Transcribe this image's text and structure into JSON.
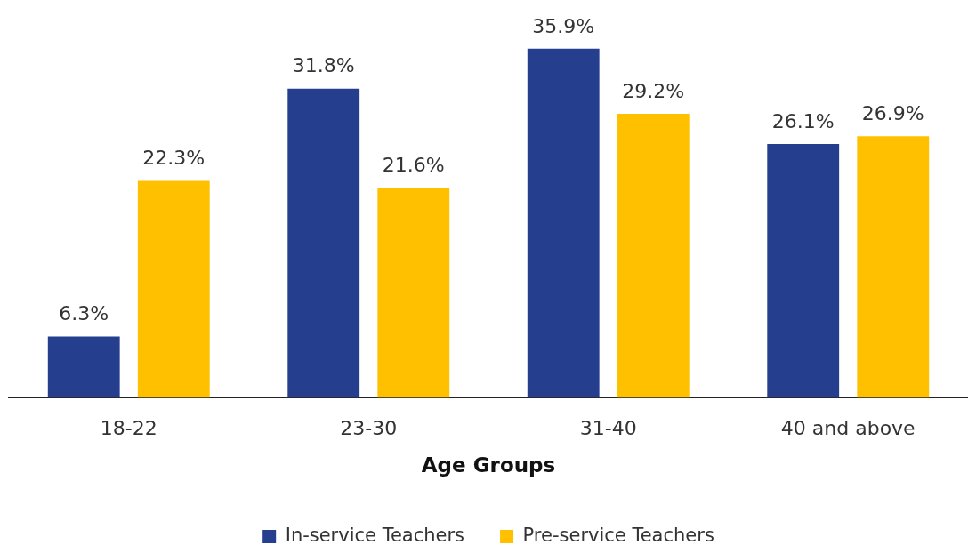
{
  "chart_data": {
    "type": "bar",
    "xlabel": "Age Groups",
    "categories": [
      "18-22",
      "23-30",
      "31-40",
      "40 and above"
    ],
    "series": [
      {
        "name": "In-service Teachers",
        "color": "#253f8e",
        "values": [
          6.3,
          31.8,
          35.9,
          26.1
        ],
        "value_labels": [
          "6.3%",
          "31.8%",
          "35.9%",
          "26.1%"
        ]
      },
      {
        "name": "Pre-service Teachers",
        "color": "#ffc000",
        "values": [
          22.3,
          21.6,
          29.2,
          26.9
        ],
        "value_labels": [
          "22.3%",
          "21.6%",
          "29.2%",
          "26.9%"
        ]
      }
    ],
    "legend": "bottom",
    "tick_labels": "x"
  }
}
